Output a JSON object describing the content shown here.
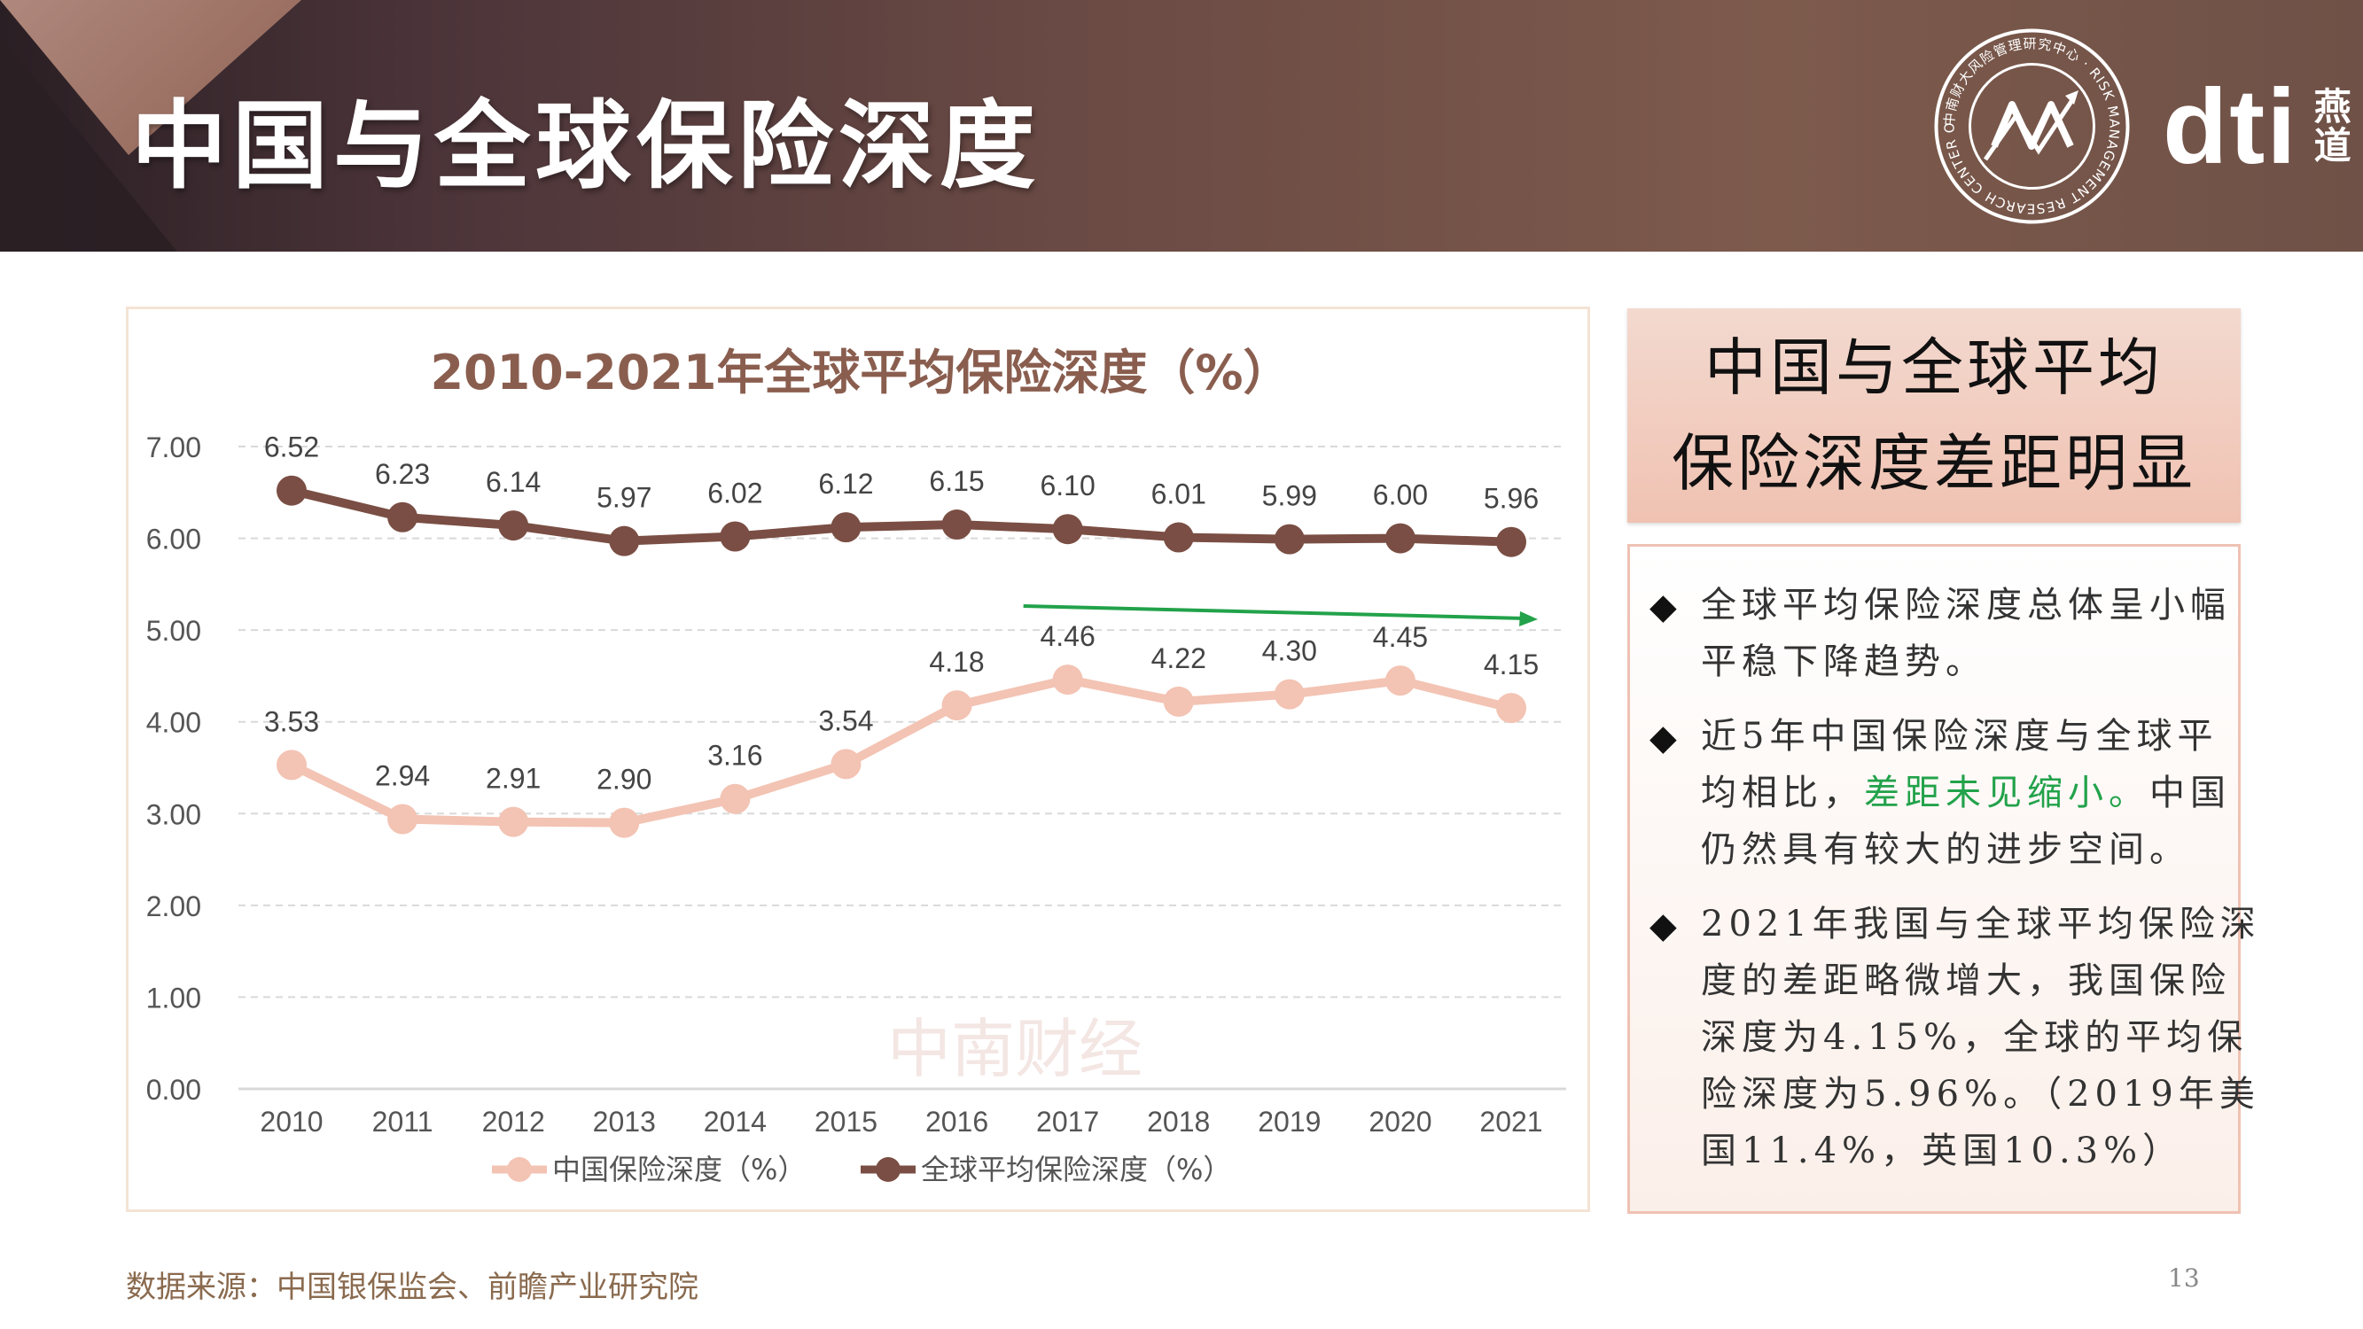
{
  "header": {
    "title": "中国与全球保险深度",
    "seal_ring_text": "中南财大风险管理研究中心 · RISK MANAGEMENT RESEARCH CENTER OF ZUEL",
    "brand_name": "dti",
    "brand_cn_top": "燕",
    "brand_cn_bottom": "道"
  },
  "chart_data": {
    "type": "line",
    "title": "2010-2021年全球平均保险深度（%）",
    "categories": [
      "2010",
      "2011",
      "2012",
      "2013",
      "2014",
      "2015",
      "2016",
      "2017",
      "2018",
      "2019",
      "2020",
      "2021"
    ],
    "series": [
      {
        "name": "中国保险深度（%）",
        "color": "#f3c3b3",
        "values": [
          3.53,
          2.94,
          2.91,
          2.9,
          3.16,
          3.54,
          4.18,
          4.46,
          4.22,
          4.3,
          4.45,
          4.15
        ],
        "labels": [
          "3.53",
          "2.94",
          "2.91",
          "2.90",
          "3.16",
          "3.54",
          "4.18",
          "4.46",
          "4.22",
          "4.30",
          "4.45",
          "4.15"
        ]
      },
      {
        "name": "全球平均保险深度（%）",
        "color": "#7a4e44",
        "values": [
          6.52,
          6.23,
          6.14,
          5.97,
          6.02,
          6.12,
          6.15,
          6.1,
          6.01,
          5.99,
          6.0,
          5.96
        ],
        "labels": [
          "6.52",
          "6.23",
          "6.14",
          "5.97",
          "6.02",
          "6.12",
          "6.15",
          "6.10",
          "6.01",
          "5.99",
          "6.00",
          "5.96"
        ]
      }
    ],
    "ylim": [
      0,
      7
    ],
    "yticks": [
      "0.00",
      "1.00",
      "2.00",
      "3.00",
      "4.00",
      "5.00",
      "6.00",
      "7.00"
    ],
    "grid": "dashed-horizontal",
    "legend": "bottom-center",
    "annotation_arrow": {
      "color": "#22a24a",
      "from_year": "2017",
      "to_year": "2021"
    },
    "watermark": "中南财经"
  },
  "side": {
    "title_line1": "中国与全球平均",
    "title_line2": "保险深度差距明显",
    "b1_l1": "全球平均保险深度总体呈小幅",
    "b1_l2": "平稳下降趋势。",
    "b2_l1": "近5年中国保险深度与全球平",
    "b2_l2a": "均相比，",
    "b2_l2b": "差距未见缩小。",
    "b2_l2c": "中国",
    "b2_l3": "仍然具有较大的进步空间。",
    "b3_l1": "2021年我国与全球平均保险深",
    "b3_l2": "度的差距略微增大，我国保险",
    "b3_l3": "深度为4.15%，全球的平均保",
    "b3_l4": "险深度为5.96%。（2019年美",
    "b3_l5": "国11.4%，英国10.3%）",
    "bullet_symbol": "◆"
  },
  "footer": {
    "source": "数据来源：中国银保监会、前瞻产业研究院",
    "page_number": "13"
  }
}
